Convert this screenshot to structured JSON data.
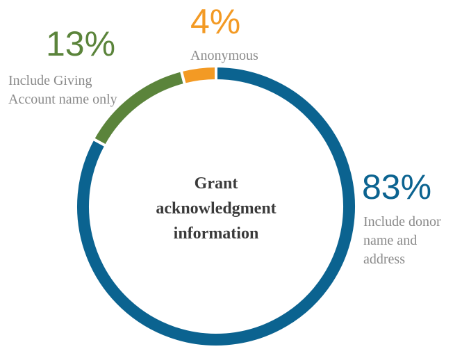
{
  "chart_data": {
    "type": "donut",
    "title": "Grant acknowledgment information",
    "categories": [
      "Include donor name and address",
      "Include Giving Account name only",
      "Anonymous"
    ],
    "values": [
      83,
      13,
      4
    ],
    "value_labels": [
      "83%",
      "13%",
      "4%"
    ],
    "colors": [
      "#0b6390",
      "#5b843b",
      "#f39a24"
    ]
  }
}
